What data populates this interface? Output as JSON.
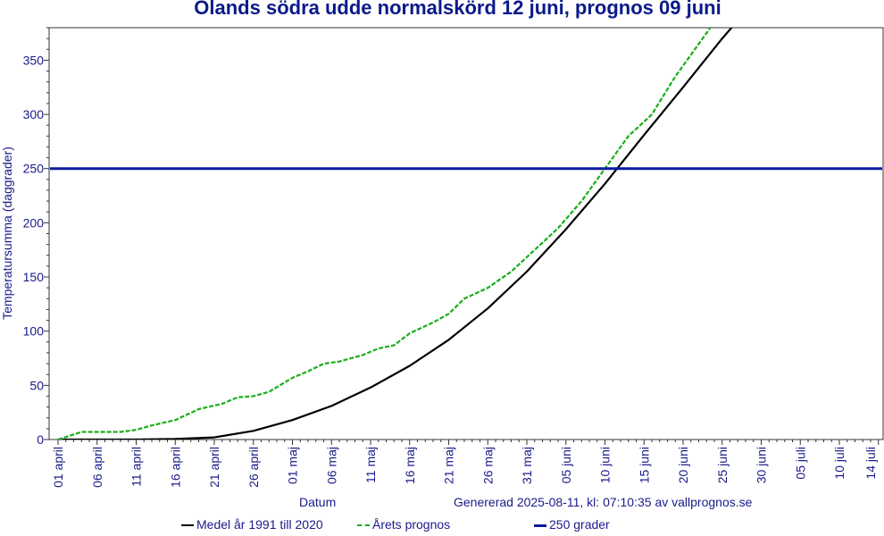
{
  "chart_data": {
    "type": "line",
    "title": "Ölands södra udde normalskörd 12 juni, prognos 09 juni",
    "xlabel": "Datum",
    "ylabel": "Temperatursumma (daggrader)",
    "ylim": [
      0,
      380
    ],
    "yticks": [
      0,
      50,
      100,
      150,
      200,
      250,
      300,
      350
    ],
    "xlim": [
      "2025-04-01",
      "2025-07-15"
    ],
    "xtick_labels": [
      "01 april",
      "06 april",
      "11 april",
      "16 april",
      "21 april",
      "26 april",
      "01 maj",
      "06 maj",
      "11 maj",
      "16 maj",
      "21 maj",
      "26 maj",
      "31 maj",
      "05 juni",
      "10 juni",
      "15 juni",
      "20 juni",
      "25 juni",
      "30 juni",
      "05 juli",
      "10 juli",
      "14 juli"
    ],
    "grid": false,
    "legend_position": "bottom",
    "footer": "Genererad 2025-08-11, kl: 07:10:35 av vallprognos.se",
    "series": [
      {
        "name": "Medel år 1991 till 2020",
        "color": "#000000",
        "style": "solid",
        "x": [
          "2025-04-01",
          "2025-04-06",
          "2025-04-11",
          "2025-04-16",
          "2025-04-21",
          "2025-04-26",
          "2025-05-01",
          "2025-05-06",
          "2025-05-11",
          "2025-05-16",
          "2025-05-21",
          "2025-05-26",
          "2025-05-31",
          "2025-06-05",
          "2025-06-10",
          "2025-06-15",
          "2025-06-20",
          "2025-06-25",
          "2025-06-28"
        ],
        "values": [
          0,
          0,
          0,
          0.5,
          2,
          8,
          18,
          31,
          48,
          68,
          92,
          121,
          155,
          194,
          236,
          281,
          325,
          370,
          395
        ]
      },
      {
        "name": "Årets prognos",
        "color": "#1aae1a",
        "style": "dashed",
        "x": [
          "2025-04-01",
          "2025-04-04",
          "2025-04-06",
          "2025-04-09",
          "2025-04-11",
          "2025-04-13",
          "2025-04-16",
          "2025-04-19",
          "2025-04-22",
          "2025-04-24",
          "2025-04-26",
          "2025-04-28",
          "2025-05-01",
          "2025-05-03",
          "2025-05-05",
          "2025-05-07",
          "2025-05-10",
          "2025-05-12",
          "2025-05-14",
          "2025-05-16",
          "2025-05-19",
          "2025-05-21",
          "2025-05-23",
          "2025-05-26",
          "2025-05-29",
          "2025-06-01",
          "2025-06-04",
          "2025-06-07",
          "2025-06-10",
          "2025-06-13",
          "2025-06-16",
          "2025-06-19",
          "2025-06-22",
          "2025-06-24",
          "2025-06-25"
        ],
        "values": [
          0,
          7,
          7,
          7,
          9,
          13,
          18,
          28,
          33,
          39,
          40,
          44,
          57,
          63,
          70,
          72,
          78,
          84,
          87,
          98,
          108,
          116,
          130,
          140,
          155,
          175,
          195,
          220,
          250,
          280,
          300,
          335,
          365,
          385,
          392
        ]
      },
      {
        "name": "250 grader",
        "color": "#0a1aa0",
        "style": "solid",
        "x": [
          "2025-04-01",
          "2025-07-15"
        ],
        "values": [
          250,
          250
        ]
      }
    ]
  }
}
